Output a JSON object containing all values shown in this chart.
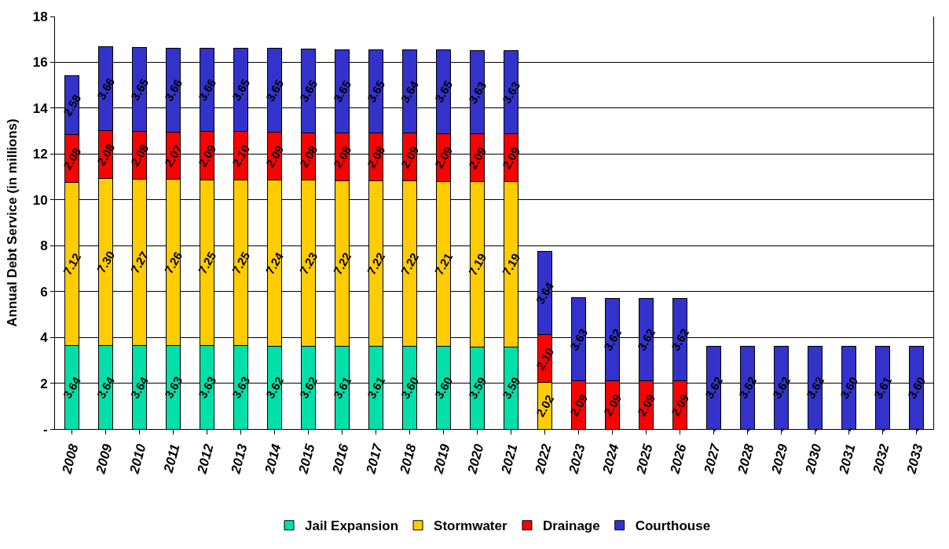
{
  "chart_data": {
    "type": "bar",
    "stacked": true,
    "ylabel": "Annual Debt Service (in millions)",
    "categories": [
      "2008",
      "2009",
      "2010",
      "2011",
      "2012",
      "2013",
      "2014",
      "2015",
      "2016",
      "2017",
      "2018",
      "2019",
      "2020",
      "2021",
      "2022",
      "2023",
      "2024",
      "2025",
      "2026",
      "2027",
      "2028",
      "2029",
      "2030",
      "2031",
      "2032",
      "2033"
    ],
    "series": [
      {
        "name": "Jail Expansion",
        "color": "#00e0a8",
        "values": [
          3.64,
          3.64,
          3.64,
          3.63,
          3.63,
          3.63,
          3.62,
          3.62,
          3.61,
          3.61,
          3.6,
          3.6,
          3.59,
          3.59,
          null,
          null,
          null,
          null,
          null,
          null,
          null,
          null,
          null,
          null,
          null,
          null
        ],
        "value_labels": [
          "3.64",
          "3.64",
          "3.64",
          "3.63",
          "3.63",
          "3.63",
          "3.62",
          "3.62",
          "3.61",
          "3.61",
          "3.60",
          "3.60",
          "3.59",
          "3.59",
          null,
          null,
          null,
          null,
          null,
          null,
          null,
          null,
          null,
          null,
          null,
          null
        ]
      },
      {
        "name": "Stormwater",
        "color": "#ffcc00",
        "values": [
          7.12,
          7.3,
          7.27,
          7.26,
          7.25,
          7.25,
          7.24,
          7.23,
          7.22,
          7.22,
          7.22,
          7.21,
          7.19,
          7.19,
          2.02,
          null,
          null,
          null,
          null,
          null,
          null,
          null,
          null,
          null,
          null,
          null
        ],
        "value_labels": [
          "7.12",
          "7.30",
          "7.27",
          "7.26",
          "7.25",
          "7.25",
          "7.24",
          "7.23",
          "7.22",
          "7.22",
          "7.22",
          "7.21",
          "7.19",
          "7.19",
          "2.02",
          null,
          null,
          null,
          null,
          null,
          null,
          null,
          null,
          null,
          null,
          null
        ]
      },
      {
        "name": "Drainage",
        "color": "#ff0000",
        "values": [
          2.08,
          2.08,
          2.08,
          2.07,
          2.09,
          2.1,
          2.09,
          2.08,
          2.08,
          2.08,
          2.09,
          2.09,
          2.09,
          2.09,
          2.1,
          2.09,
          2.09,
          2.09,
          2.09,
          null,
          null,
          null,
          null,
          null,
          null,
          null
        ],
        "value_labels": [
          "2.08",
          "2.08",
          "2.08",
          "2.07",
          "2.09",
          "2.10",
          "2.09",
          "2.08",
          "2.08",
          "2.08",
          "2.09",
          "2.09",
          "2.09",
          "2.09",
          "2.10",
          "2.09",
          "2.09",
          "2.09",
          "2.09",
          null,
          null,
          null,
          null,
          null,
          null,
          null
        ]
      },
      {
        "name": "Courthouse",
        "color": "#3333cc",
        "values": [
          2.58,
          3.66,
          3.65,
          3.66,
          3.66,
          3.65,
          3.65,
          3.65,
          3.65,
          3.65,
          3.64,
          3.65,
          3.63,
          3.63,
          3.64,
          3.63,
          3.62,
          3.62,
          3.62,
          3.62,
          3.62,
          3.62,
          3.62,
          3.6,
          3.61,
          3.6
        ],
        "value_labels": [
          "2.58",
          "3.66",
          "3.65",
          "3.66",
          "3.66",
          "3.65",
          "3.65",
          "3.65",
          "3.65",
          "3.65",
          "3.64",
          "3.65",
          "3.63",
          "3.63",
          "3.64",
          "3.63",
          "3.62",
          "3.62",
          "3.62",
          "3.62",
          "3.62",
          "3.62",
          "3.62",
          "3.60",
          "3.61",
          "3.60"
        ]
      }
    ],
    "ylim": [
      0,
      18
    ],
    "yticks": [
      {
        "value": 0,
        "label": "-"
      },
      2,
      4,
      6,
      8,
      10,
      12,
      14,
      16,
      18
    ],
    "annotations": [
      {
        "text": "-",
        "x": "2027",
        "y": 0
      },
      {
        "text": "-",
        "x": "2028",
        "y": 0
      },
      {
        "text": "-",
        "x": "2029",
        "y": 0
      },
      {
        "text": "-",
        "x": "2030",
        "y": 0
      },
      {
        "text": "-",
        "x": "2031",
        "y": 0
      },
      {
        "text": "-",
        "x": "2032",
        "y": 0
      },
      {
        "text": "-",
        "x": "2033",
        "y": 0
      }
    ],
    "grid": "y",
    "legend": "bottom"
  }
}
